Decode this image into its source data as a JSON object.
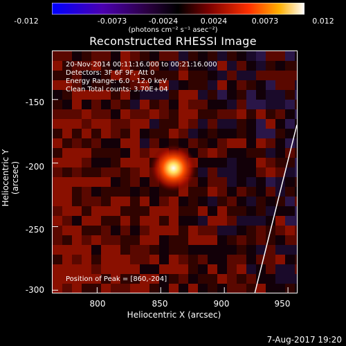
{
  "colorbar": {
    "ticks": [
      "-0.012",
      "-0.0073",
      "-0.0024",
      "0.0024",
      "0.0073",
      "0.012"
    ],
    "units": "(photons cm⁻² s⁻¹ asec⁻²)",
    "min": -0.012,
    "max": 0.012
  },
  "title": "Reconstructed RHESSI Image",
  "annotations": {
    "time_range": "20-Nov-2014 00:11:16.000 to 00:21:16.000",
    "detectors": "Detectors: 3F 6F 9F, Att 0",
    "energy": "Energy Range: 6.0 - 12.0 keV",
    "method": "Clean    Total counts: 3.70E+04",
    "peak": "Position of Peak = [860,-204]"
  },
  "timestamp": "7-Aug-2017 19:20",
  "chart_data": {
    "type": "heatmap",
    "xlabel": "Heliocentric X (arcsec)",
    "ylabel": "Heliocentric Y (arcsec)",
    "x_ticks": [
      "800",
      "850",
      "900",
      "950"
    ],
    "y_ticks": [
      "-150",
      "-200",
      "-250",
      "-300"
    ],
    "xlim": [
      765,
      957
    ],
    "ylim": [
      -302,
      -112
    ],
    "peak": {
      "x": 860,
      "y": -204
    },
    "limb_line": {
      "x1": 924,
      "y1": -302,
      "x2": 957,
      "y2": -170
    },
    "colorscale": [
      "#1a1aff",
      "#4b0082",
      "#000000",
      "#8b0000",
      "#ff4500",
      "#ffd700",
      "#ffffff"
    ]
  }
}
